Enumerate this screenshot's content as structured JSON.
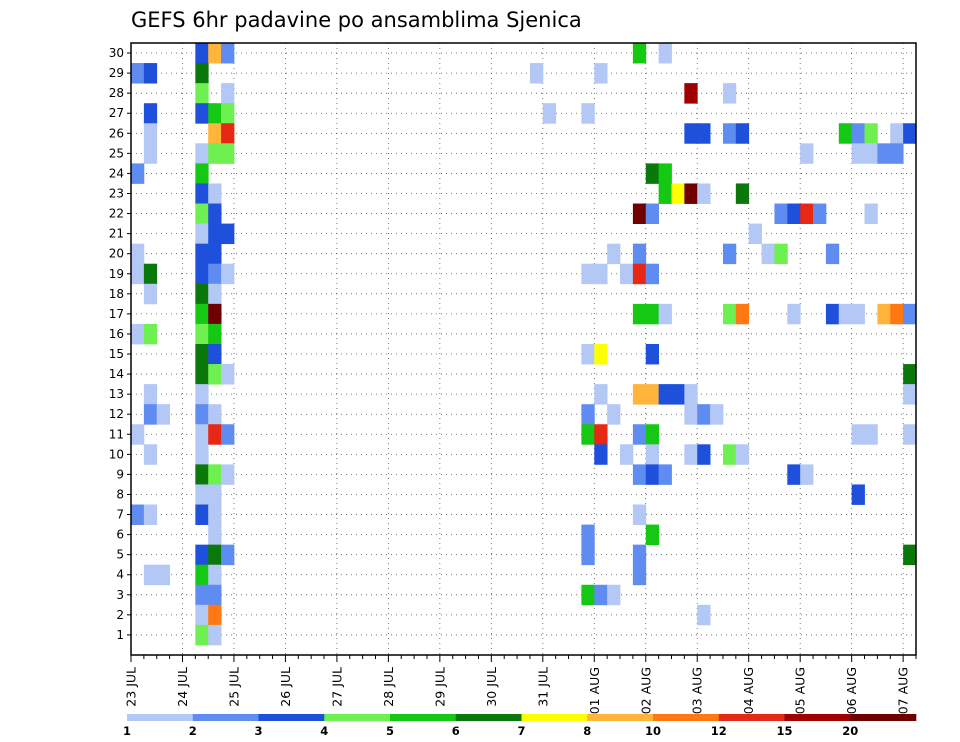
{
  "chart_data": {
    "type": "heatmap",
    "title": "GEFS 6hr padavine po ansamblima Sjenica",
    "xlabel": "",
    "ylabel": "",
    "x_tick_labels": [
      "23 JUL",
      "24 JUL",
      "25 JUL",
      "26 JUL",
      "27 JUL",
      "28 JUL",
      "29 JUL",
      "30 JUL",
      "31 JUL",
      "01 AUG",
      "02 AUG",
      "03 AUG",
      "04 AUG",
      "05 AUG",
      "06 AUG",
      "07 AUG"
    ],
    "y_tick_labels": [
      "1",
      "2",
      "3",
      "4",
      "5",
      "6",
      "7",
      "8",
      "9",
      "10",
      "11",
      "12",
      "13",
      "14",
      "15",
      "16",
      "17",
      "18",
      "19",
      "20",
      "21",
      "22",
      "23",
      "24",
      "25",
      "26",
      "27",
      "28",
      "29",
      "30"
    ],
    "steps_per_day": 4,
    "num_steps": 61,
    "num_members": 30,
    "colorbar": {
      "levels": [
        "1",
        "2",
        "3",
        "4",
        "5",
        "6",
        "7",
        "8",
        "10",
        "12",
        "15",
        "20"
      ],
      "colors": [
        "#b4c8f5",
        "#5f8cf0",
        "#1e50dc",
        "#6ef050",
        "#14c814",
        "#0a780a",
        "#ffff00",
        "#ffb43c",
        "#ff7814",
        "#e62814",
        "#a00000",
        "#700000"
      ]
    },
    "cells": [
      {
        "m": 30,
        "t": 5,
        "c": 2
      },
      {
        "m": 30,
        "t": 6,
        "c": 7
      },
      {
        "m": 30,
        "t": 7,
        "c": 1
      },
      {
        "m": 30,
        "t": 39,
        "c": 4
      },
      {
        "m": 30,
        "t": 41,
        "c": 0
      },
      {
        "m": 29,
        "t": 0,
        "c": 1
      },
      {
        "m": 29,
        "t": 1,
        "c": 2
      },
      {
        "m": 29,
        "t": 5,
        "c": 5
      },
      {
        "m": 29,
        "t": 31,
        "c": 0
      },
      {
        "m": 29,
        "t": 36,
        "c": 0
      },
      {
        "m": 28,
        "t": 5,
        "c": 3
      },
      {
        "m": 28,
        "t": 7,
        "c": 0
      },
      {
        "m": 28,
        "t": 43,
        "c": 10
      },
      {
        "m": 28,
        "t": 46,
        "c": 0
      },
      {
        "m": 27,
        "t": 1,
        "c": 2
      },
      {
        "m": 27,
        "t": 5,
        "c": 2
      },
      {
        "m": 27,
        "t": 6,
        "c": 4
      },
      {
        "m": 27,
        "t": 7,
        "c": 3
      },
      {
        "m": 27,
        "t": 32,
        "c": 0
      },
      {
        "m": 27,
        "t": 35,
        "c": 0
      },
      {
        "m": 26,
        "t": 1,
        "c": 0
      },
      {
        "m": 26,
        "t": 6,
        "c": 7
      },
      {
        "m": 26,
        "t": 7,
        "c": 9
      },
      {
        "m": 26,
        "t": 43,
        "c": 2
      },
      {
        "m": 26,
        "t": 44,
        "c": 2
      },
      {
        "m": 26,
        "t": 46,
        "c": 1
      },
      {
        "m": 26,
        "t": 47,
        "c": 2
      },
      {
        "m": 26,
        "t": 55,
        "c": 4
      },
      {
        "m": 26,
        "t": 56,
        "c": 1
      },
      {
        "m": 26,
        "t": 57,
        "c": 3
      },
      {
        "m": 26,
        "t": 59,
        "c": 0
      },
      {
        "m": 26,
        "t": 60,
        "c": 2
      },
      {
        "m": 25,
        "t": 1,
        "c": 0
      },
      {
        "m": 25,
        "t": 5,
        "c": 0
      },
      {
        "m": 25,
        "t": 6,
        "c": 3
      },
      {
        "m": 25,
        "t": 7,
        "c": 3
      },
      {
        "m": 25,
        "t": 52,
        "c": 0
      },
      {
        "m": 25,
        "t": 56,
        "c": 0
      },
      {
        "m": 25,
        "t": 57,
        "c": 0
      },
      {
        "m": 25,
        "t": 58,
        "c": 1
      },
      {
        "m": 25,
        "t": 59,
        "c": 1
      },
      {
        "m": 24,
        "t": 0,
        "c": 1
      },
      {
        "m": 24,
        "t": 5,
        "c": 4
      },
      {
        "m": 24,
        "t": 40,
        "c": 5
      },
      {
        "m": 24,
        "t": 41,
        "c": 4
      },
      {
        "m": 23,
        "t": 5,
        "c": 2
      },
      {
        "m": 23,
        "t": 6,
        "c": 0
      },
      {
        "m": 23,
        "t": 41,
        "c": 4
      },
      {
        "m": 23,
        "t": 42,
        "c": 6
      },
      {
        "m": 23,
        "t": 43,
        "c": 11
      },
      {
        "m": 23,
        "t": 44,
        "c": 0
      },
      {
        "m": 23,
        "t": 47,
        "c": 5
      },
      {
        "m": 22,
        "t": 5,
        "c": 3
      },
      {
        "m": 22,
        "t": 6,
        "c": 2
      },
      {
        "m": 22,
        "t": 39,
        "c": 11
      },
      {
        "m": 22,
        "t": 40,
        "c": 1
      },
      {
        "m": 22,
        "t": 50,
        "c": 1
      },
      {
        "m": 22,
        "t": 51,
        "c": 2
      },
      {
        "m": 22,
        "t": 52,
        "c": 9
      },
      {
        "m": 22,
        "t": 53,
        "c": 1
      },
      {
        "m": 22,
        "t": 57,
        "c": 0
      },
      {
        "m": 21,
        "t": 5,
        "c": 0
      },
      {
        "m": 21,
        "t": 6,
        "c": 2
      },
      {
        "m": 21,
        "t": 7,
        "c": 2
      },
      {
        "m": 21,
        "t": 48,
        "c": 0
      },
      {
        "m": 20,
        "t": 0,
        "c": 0
      },
      {
        "m": 20,
        "t": 5,
        "c": 2
      },
      {
        "m": 20,
        "t": 6,
        "c": 2
      },
      {
        "m": 20,
        "t": 37,
        "c": 0
      },
      {
        "m": 20,
        "t": 39,
        "c": 1
      },
      {
        "m": 20,
        "t": 46,
        "c": 1
      },
      {
        "m": 20,
        "t": 49,
        "c": 0
      },
      {
        "m": 20,
        "t": 50,
        "c": 3
      },
      {
        "m": 20,
        "t": 54,
        "c": 1
      },
      {
        "m": 19,
        "t": 0,
        "c": 0
      },
      {
        "m": 19,
        "t": 1,
        "c": 5
      },
      {
        "m": 19,
        "t": 5,
        "c": 2
      },
      {
        "m": 19,
        "t": 6,
        "c": 1
      },
      {
        "m": 19,
        "t": 7,
        "c": 0
      },
      {
        "m": 19,
        "t": 35,
        "c": 0
      },
      {
        "m": 19,
        "t": 36,
        "c": 0
      },
      {
        "m": 19,
        "t": 38,
        "c": 0
      },
      {
        "m": 19,
        "t": 39,
        "c": 9
      },
      {
        "m": 19,
        "t": 40,
        "c": 1
      },
      {
        "m": 18,
        "t": 1,
        "c": 0
      },
      {
        "m": 18,
        "t": 5,
        "c": 5
      },
      {
        "m": 18,
        "t": 6,
        "c": 0
      },
      {
        "m": 17,
        "t": 5,
        "c": 4
      },
      {
        "m": 17,
        "t": 6,
        "c": 11
      },
      {
        "m": 17,
        "t": 39,
        "c": 4
      },
      {
        "m": 17,
        "t": 40,
        "c": 4
      },
      {
        "m": 17,
        "t": 41,
        "c": 0
      },
      {
        "m": 17,
        "t": 46,
        "c": 3
      },
      {
        "m": 17,
        "t": 47,
        "c": 8
      },
      {
        "m": 17,
        "t": 51,
        "c": 0
      },
      {
        "m": 17,
        "t": 54,
        "c": 2
      },
      {
        "m": 17,
        "t": 55,
        "c": 0
      },
      {
        "m": 17,
        "t": 56,
        "c": 0
      },
      {
        "m": 17,
        "t": 58,
        "c": 7
      },
      {
        "m": 17,
        "t": 59,
        "c": 8
      },
      {
        "m": 17,
        "t": 60,
        "c": 1
      },
      {
        "m": 16,
        "t": 0,
        "c": 0
      },
      {
        "m": 16,
        "t": 1,
        "c": 3
      },
      {
        "m": 16,
        "t": 5,
        "c": 3
      },
      {
        "m": 16,
        "t": 6,
        "c": 4
      },
      {
        "m": 15,
        "t": 5,
        "c": 5
      },
      {
        "m": 15,
        "t": 6,
        "c": 2
      },
      {
        "m": 15,
        "t": 35,
        "c": 0
      },
      {
        "m": 15,
        "t": 36,
        "c": 6
      },
      {
        "m": 15,
        "t": 40,
        "c": 2
      },
      {
        "m": 14,
        "t": 5,
        "c": 5
      },
      {
        "m": 14,
        "t": 6,
        "c": 3
      },
      {
        "m": 14,
        "t": 7,
        "c": 0
      },
      {
        "m": 14,
        "t": 60,
        "c": 5
      },
      {
        "m": 13,
        "t": 1,
        "c": 0
      },
      {
        "m": 13,
        "t": 5,
        "c": 0
      },
      {
        "m": 13,
        "t": 36,
        "c": 0
      },
      {
        "m": 13,
        "t": 39,
        "c": 7
      },
      {
        "m": 13,
        "t": 40,
        "c": 7
      },
      {
        "m": 13,
        "t": 41,
        "c": 2
      },
      {
        "m": 13,
        "t": 42,
        "c": 2
      },
      {
        "m": 13,
        "t": 43,
        "c": 0
      },
      {
        "m": 13,
        "t": 60,
        "c": 0
      },
      {
        "m": 12,
        "t": 1,
        "c": 1
      },
      {
        "m": 12,
        "t": 2,
        "c": 0
      },
      {
        "m": 12,
        "t": 5,
        "c": 1
      },
      {
        "m": 12,
        "t": 6,
        "c": 0
      },
      {
        "m": 12,
        "t": 35,
        "c": 1
      },
      {
        "m": 12,
        "t": 37,
        "c": 0
      },
      {
        "m": 12,
        "t": 43,
        "c": 0
      },
      {
        "m": 12,
        "t": 44,
        "c": 1
      },
      {
        "m": 12,
        "t": 45,
        "c": 0
      },
      {
        "m": 11,
        "t": 0,
        "c": 0
      },
      {
        "m": 11,
        "t": 5,
        "c": 0
      },
      {
        "m": 11,
        "t": 6,
        "c": 9
      },
      {
        "m": 11,
        "t": 7,
        "c": 1
      },
      {
        "m": 11,
        "t": 35,
        "c": 4
      },
      {
        "m": 11,
        "t": 36,
        "c": 9
      },
      {
        "m": 11,
        "t": 39,
        "c": 1
      },
      {
        "m": 11,
        "t": 40,
        "c": 4
      },
      {
        "m": 11,
        "t": 56,
        "c": 0
      },
      {
        "m": 11,
        "t": 57,
        "c": 0
      },
      {
        "m": 11,
        "t": 60,
        "c": 0
      },
      {
        "m": 10,
        "t": 1,
        "c": 0
      },
      {
        "m": 10,
        "t": 5,
        "c": 0
      },
      {
        "m": 10,
        "t": 36,
        "c": 2
      },
      {
        "m": 10,
        "t": 38,
        "c": 0
      },
      {
        "m": 10,
        "t": 40,
        "c": 0
      },
      {
        "m": 10,
        "t": 43,
        "c": 0
      },
      {
        "m": 10,
        "t": 44,
        "c": 2
      },
      {
        "m": 10,
        "t": 46,
        "c": 3
      },
      {
        "m": 10,
        "t": 47,
        "c": 0
      },
      {
        "m": 9,
        "t": 5,
        "c": 5
      },
      {
        "m": 9,
        "t": 6,
        "c": 3
      },
      {
        "m": 9,
        "t": 7,
        "c": 0
      },
      {
        "m": 9,
        "t": 39,
        "c": 1
      },
      {
        "m": 9,
        "t": 40,
        "c": 2
      },
      {
        "m": 9,
        "t": 41,
        "c": 1
      },
      {
        "m": 9,
        "t": 51,
        "c": 2
      },
      {
        "m": 9,
        "t": 52,
        "c": 0
      },
      {
        "m": 8,
        "t": 5,
        "c": 0
      },
      {
        "m": 8,
        "t": 6,
        "c": 0
      },
      {
        "m": 8,
        "t": 56,
        "c": 2
      },
      {
        "m": 7,
        "t": 0,
        "c": 1
      },
      {
        "m": 7,
        "t": 1,
        "c": 0
      },
      {
        "m": 7,
        "t": 5,
        "c": 2
      },
      {
        "m": 7,
        "t": 6,
        "c": 0
      },
      {
        "m": 7,
        "t": 39,
        "c": 0
      },
      {
        "m": 6,
        "t": 6,
        "c": 0
      },
      {
        "m": 6,
        "t": 35,
        "c": 1
      },
      {
        "m": 6,
        "t": 40,
        "c": 4
      },
      {
        "m": 5,
        "t": 5,
        "c": 2
      },
      {
        "m": 5,
        "t": 6,
        "c": 5
      },
      {
        "m": 5,
        "t": 7,
        "c": 1
      },
      {
        "m": 5,
        "t": 35,
        "c": 1
      },
      {
        "m": 5,
        "t": 39,
        "c": 1
      },
      {
        "m": 5,
        "t": 60,
        "c": 5
      },
      {
        "m": 4,
        "t": 1,
        "c": 0
      },
      {
        "m": 4,
        "t": 2,
        "c": 0
      },
      {
        "m": 4,
        "t": 5,
        "c": 4
      },
      {
        "m": 4,
        "t": 6,
        "c": 0
      },
      {
        "m": 4,
        "t": 39,
        "c": 1
      },
      {
        "m": 3,
        "t": 5,
        "c": 1
      },
      {
        "m": 3,
        "t": 6,
        "c": 1
      },
      {
        "m": 3,
        "t": 35,
        "c": 4
      },
      {
        "m": 3,
        "t": 36,
        "c": 1
      },
      {
        "m": 3,
        "t": 37,
        "c": 0
      },
      {
        "m": 2,
        "t": 5,
        "c": 0
      },
      {
        "m": 2,
        "t": 6,
        "c": 8
      },
      {
        "m": 2,
        "t": 44,
        "c": 0
      },
      {
        "m": 1,
        "t": 5,
        "c": 3
      },
      {
        "m": 1,
        "t": 6,
        "c": 0
      }
    ]
  }
}
